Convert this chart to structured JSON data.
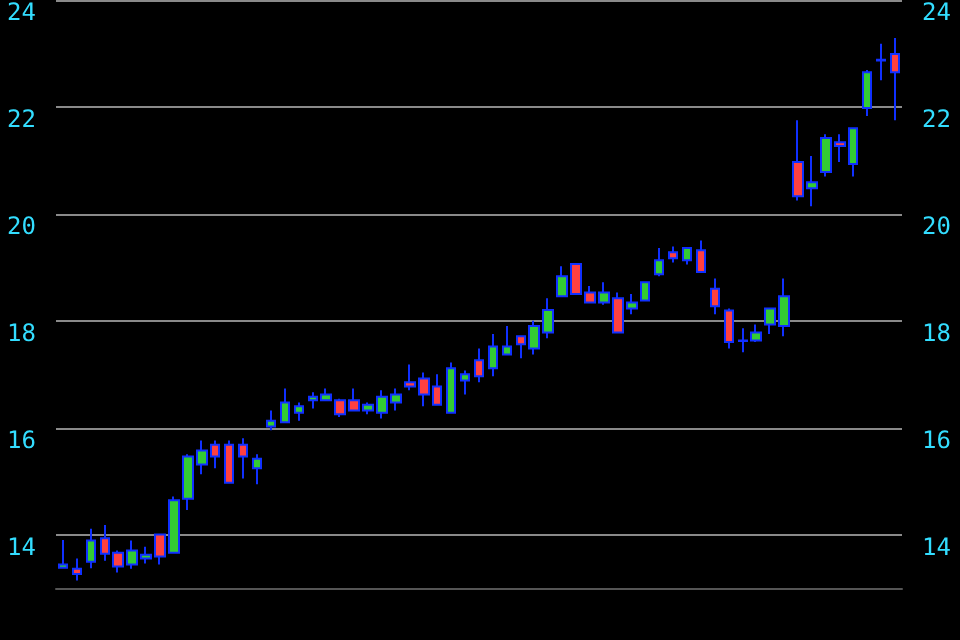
{
  "chart_data": {
    "type": "candlestick",
    "categories": [
      null,
      null,
      null,
      null,
      null,
      null,
      null,
      null,
      null,
      null,
      null,
      null,
      null,
      null,
      null,
      null,
      null,
      null,
      null,
      null,
      null,
      null,
      null,
      null,
      null,
      null,
      null,
      null,
      null,
      null,
      null,
      null,
      null,
      null,
      null,
      null,
      null,
      null,
      null,
      null,
      null,
      null,
      null,
      null,
      null,
      null,
      null,
      null,
      null,
      null,
      null,
      null,
      null,
      null,
      null,
      null,
      null,
      null,
      null,
      null,
      null
    ],
    "ohlc": [
      [
        13.38,
        13.9,
        13.36,
        13.44
      ],
      [
        13.36,
        13.55,
        13.14,
        13.26
      ],
      [
        13.49,
        14.11,
        13.37,
        13.89
      ],
      [
        13.93,
        14.18,
        13.51,
        13.64
      ],
      [
        13.66,
        13.7,
        13.29,
        13.4
      ],
      [
        13.44,
        13.89,
        13.36,
        13.7
      ],
      [
        13.55,
        13.77,
        13.46,
        13.62
      ],
      [
        14.0,
        14.02,
        13.44,
        13.59
      ],
      [
        13.66,
        14.71,
        13.66,
        14.64
      ],
      [
        14.67,
        15.5,
        14.46,
        15.46
      ],
      [
        15.31,
        15.76,
        15.13,
        15.57
      ],
      [
        15.68,
        15.76,
        15.24,
        15.46
      ],
      [
        15.68,
        15.76,
        14.97,
        14.97
      ],
      [
        15.68,
        15.8,
        15.05,
        15.46
      ],
      [
        15.24,
        15.5,
        14.94,
        15.42
      ],
      [
        16.02,
        16.32,
        15.95,
        16.13
      ],
      [
        16.1,
        16.73,
        16.1,
        16.47
      ],
      [
        16.28,
        16.47,
        16.13,
        16.4
      ],
      [
        16.51,
        16.66,
        16.36,
        16.58
      ],
      [
        16.51,
        16.73,
        16.51,
        16.62
      ],
      [
        16.51,
        16.54,
        16.2,
        16.25
      ],
      [
        16.51,
        16.73,
        16.32,
        16.32
      ],
      [
        16.32,
        16.47,
        16.25,
        16.43
      ],
      [
        16.28,
        16.7,
        16.17,
        16.58
      ],
      [
        16.47,
        16.73,
        16.32,
        16.62
      ],
      [
        16.85,
        17.18,
        16.7,
        16.77
      ],
      [
        16.92,
        17.03,
        16.4,
        16.62
      ],
      [
        16.77,
        17.0,
        16.43,
        16.43
      ],
      [
        16.28,
        17.22,
        16.28,
        17.11
      ],
      [
        16.88,
        17.07,
        16.62,
        17.0
      ],
      [
        17.26,
        17.48,
        16.85,
        16.96
      ],
      [
        17.11,
        17.75,
        16.96,
        17.52
      ],
      [
        17.37,
        17.9,
        17.37,
        17.52
      ],
      [
        17.71,
        17.71,
        17.3,
        17.56
      ],
      [
        17.48,
        18.0,
        17.37,
        17.9
      ],
      [
        17.78,
        18.42,
        17.67,
        18.2
      ],
      [
        18.46,
        19.02,
        18.46,
        18.83
      ],
      [
        19.06,
        19.06,
        18.5,
        18.5
      ],
      [
        18.53,
        18.65,
        18.34,
        18.34
      ],
      [
        18.34,
        18.72,
        18.3,
        18.53
      ],
      [
        18.42,
        18.53,
        17.78,
        17.78
      ],
      [
        18.23,
        18.5,
        18.12,
        18.34
      ],
      [
        18.38,
        18.72,
        18.38,
        18.72
      ],
      [
        18.87,
        19.36,
        18.83,
        19.13
      ],
      [
        19.28,
        19.39,
        19.09,
        19.17
      ],
      [
        19.13,
        19.36,
        19.05,
        19.36
      ],
      [
        19.32,
        19.5,
        18.91,
        18.91
      ],
      [
        18.6,
        18.79,
        18.12,
        18.27
      ],
      [
        18.19,
        18.23,
        17.48,
        17.6
      ],
      [
        17.62,
        17.86,
        17.41,
        17.63
      ],
      [
        17.63,
        17.93,
        17.6,
        17.78
      ],
      [
        17.93,
        18.23,
        17.75,
        18.23
      ],
      [
        17.9,
        18.79,
        17.71,
        18.46
      ],
      [
        20.97,
        21.75,
        20.25,
        20.33
      ],
      [
        20.48,
        21.08,
        20.14,
        20.59
      ],
      [
        20.78,
        21.49,
        20.7,
        21.42
      ],
      [
        21.34,
        21.49,
        20.97,
        21.27
      ],
      [
        20.93,
        21.6,
        20.7,
        21.6
      ],
      [
        21.98,
        22.69,
        21.83,
        22.65
      ],
      [
        22.87,
        23.18,
        22.5,
        22.88
      ],
      [
        22.99,
        23.29,
        21.75,
        22.65
      ]
    ],
    "colors": [
      "#33cc33",
      "#ff4040",
      "#33cc33",
      "#ff4040",
      "#ff4040",
      "#33cc33",
      "#33cc33",
      "#ff4040",
      "#33cc33",
      "#33cc33",
      "#33cc33",
      "#ff4040",
      "#ff4040",
      "#ff4040",
      "#33cc33",
      "#33cc33",
      "#33cc33",
      "#33cc33",
      "#33cc33",
      "#33cc33",
      "#ff4040",
      "#ff4040",
      "#33cc33",
      "#33cc33",
      "#33cc33",
      "#ff4040",
      "#ff4040",
      "#ff4040",
      "#33cc33",
      "#33cc33",
      "#ff4040",
      "#33cc33",
      "#33cc33",
      "#ff4040",
      "#33cc33",
      "#33cc33",
      "#33cc33",
      "#ff4040",
      "#ff4040",
      "#33cc33",
      "#ff4040",
      "#33cc33",
      "#33cc33",
      "#33cc33",
      "#ff4040",
      "#33cc33",
      "#ff4040",
      "#ff4040",
      "#ff4040",
      "#33cc33",
      "#33cc33",
      "#33cc33",
      "#33cc33",
      "#ff4040",
      "#33cc33",
      "#33cc33",
      "#ff4040",
      "#33cc33",
      "#33cc33",
      "#33cc33",
      "#ff4040"
    ],
    "ylim": [
      13,
      24
    ],
    "yticks": [
      14,
      16,
      18,
      20,
      22,
      24
    ],
    "y2lim": [
      13,
      24
    ],
    "y2ticks": [
      14,
      16,
      18,
      20,
      22,
      24
    ],
    "grid": "y",
    "tick_labels": "y"
  }
}
